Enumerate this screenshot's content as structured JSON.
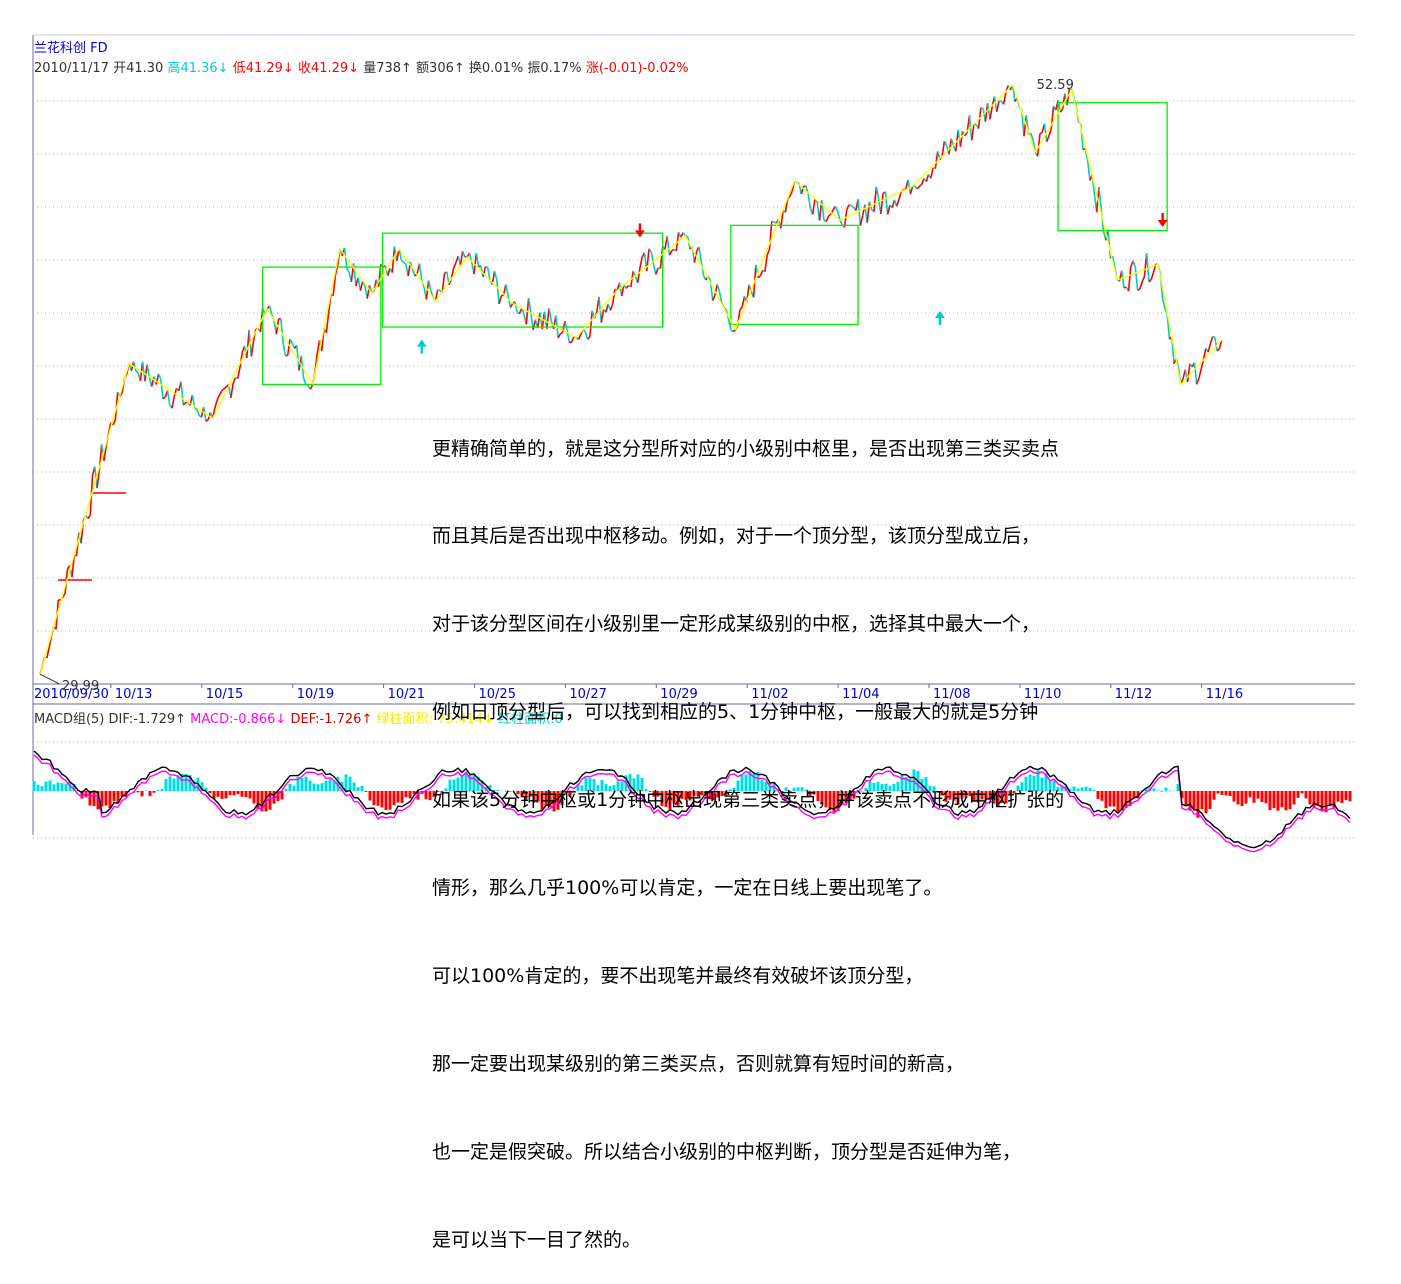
{
  "header": {
    "stock_name": "兰花科创",
    "mode": "FD",
    "date": "2010/11/17",
    "open_label": "开41.30",
    "high_label": "高41.36↓",
    "low_label": "低41.29↓",
    "close_label": "收41.29↓",
    "volume_label": "量738↑",
    "amount_label": "额306↑",
    "turnover_label": "换0.01%",
    "amplitude_label": "振0.17%",
    "change_label": "涨(-0.01)-0.02%"
  },
  "macd_header": {
    "group": "MACD组(5)",
    "dif": "DIF:-1.729↑",
    "macd": "MACD:-0.866↓",
    "def": "DEF:-1.726↑",
    "green_area": "绿柱面积:-75.414↓",
    "red_area": "红柱面积:0"
  },
  "note_lines": [
    "更精确简单的，就是这分型所对应的小级别中枢里，是否出现第三类买卖点",
    "而且其后是否出现中枢移动。例如，对于一个顶分型，该顶分型成立后，",
    "对于该分型区间在小级别里一定形成某级别的中枢，选择其中最大一个，",
    "例如日顶分型后，可以找到相应的5、1分钟中枢，一般最大的就是5分钟",
    "如果该5分钟中枢或1分钟中枢出现第三类卖点，并该卖点不形成中枢扩张的",
    "情形，那么几乎100%可以肯定，一定在日线上要出现笔了。",
    "可以100%肯定的，要不出现笔并最终有效破坏该顶分型，",
    "那一定要出现某级别的第三类买点，否则就算有短时间的新高，",
    "也一定是假突破。所以结合小级别的中枢判断，顶分型是否延伸为笔，",
    "是可以当下一目了然的。"
  ],
  "colors": {
    "up": "#ff0000",
    "down": "#00cccc",
    "stroke": "#ffff00",
    "box": "#00ee00",
    "dif": "#000000",
    "dea": "#ff00ff",
    "axis_text": "#0000cc",
    "grid": "#b0b0d0"
  },
  "chart_data": {
    "type": "line",
    "title": "兰花科创",
    "x_ticks": [
      "2010/09/30",
      "10/13",
      "10/15",
      "10/19",
      "10/21",
      "10/25",
      "10/27",
      "10/29",
      "11/02",
      "11/04",
      "11/08",
      "11/10",
      "11/12",
      "11/16"
    ],
    "ylim": [
      29.0,
      54.0
    ],
    "price_low_label": "29.99",
    "price_high_label": "52.59",
    "low_value": 29.99,
    "high_value": 52.59,
    "stroke_points": [
      {
        "t": 0.0,
        "v": 29.99
      },
      {
        "t": 0.98,
        "v": 41.9
      },
      {
        "t": 1.9,
        "v": 39.8
      },
      {
        "t": 2.5,
        "v": 44.0
      },
      {
        "t": 3.0,
        "v": 41.1
      },
      {
        "t": 3.3,
        "v": 46.3
      },
      {
        "t": 3.65,
        "v": 44.6
      },
      {
        "t": 3.95,
        "v": 46.3
      },
      {
        "t": 4.35,
        "v": 44.3
      },
      {
        "t": 4.7,
        "v": 46.0
      },
      {
        "t": 5.2,
        "v": 44.2
      },
      {
        "t": 5.9,
        "v": 42.9
      },
      {
        "t": 6.35,
        "v": 44.7
      },
      {
        "t": 7.1,
        "v": 46.8
      },
      {
        "t": 7.65,
        "v": 43.2
      },
      {
        "t": 8.3,
        "v": 48.9
      },
      {
        "t": 8.8,
        "v": 47.4
      },
      {
        "t": 9.6,
        "v": 48.7
      },
      {
        "t": 10.7,
        "v": 52.59
      },
      {
        "t": 10.95,
        "v": 50.0
      },
      {
        "t": 11.35,
        "v": 52.4
      },
      {
        "t": 11.85,
        "v": 45.1
      },
      {
        "t": 12.3,
        "v": 45.7
      },
      {
        "t": 12.55,
        "v": 41.1
      },
      {
        "t": 13.0,
        "v": 42.8
      }
    ],
    "zhongshu_boxes": [
      {
        "t0": 2.45,
        "t1": 3.75,
        "v_low": 41.1,
        "v_high": 45.6
      },
      {
        "t0": 3.77,
        "t1": 6.85,
        "v_low": 43.3,
        "v_high": 46.9
      },
      {
        "t0": 7.6,
        "t1": 9.0,
        "v_low": 43.4,
        "v_high": 47.2
      },
      {
        "t0": 11.2,
        "t1": 12.4,
        "v_low": 47.0,
        "v_high": 51.9
      }
    ],
    "sell_arrows": [
      {
        "t": 6.6,
        "v": 46.2
      },
      {
        "t": 12.35,
        "v": 46.6
      }
    ],
    "buy_arrows": [
      {
        "t": 4.2,
        "v": 43.2
      },
      {
        "t": 9.9,
        "v": 44.3
      }
    ]
  }
}
